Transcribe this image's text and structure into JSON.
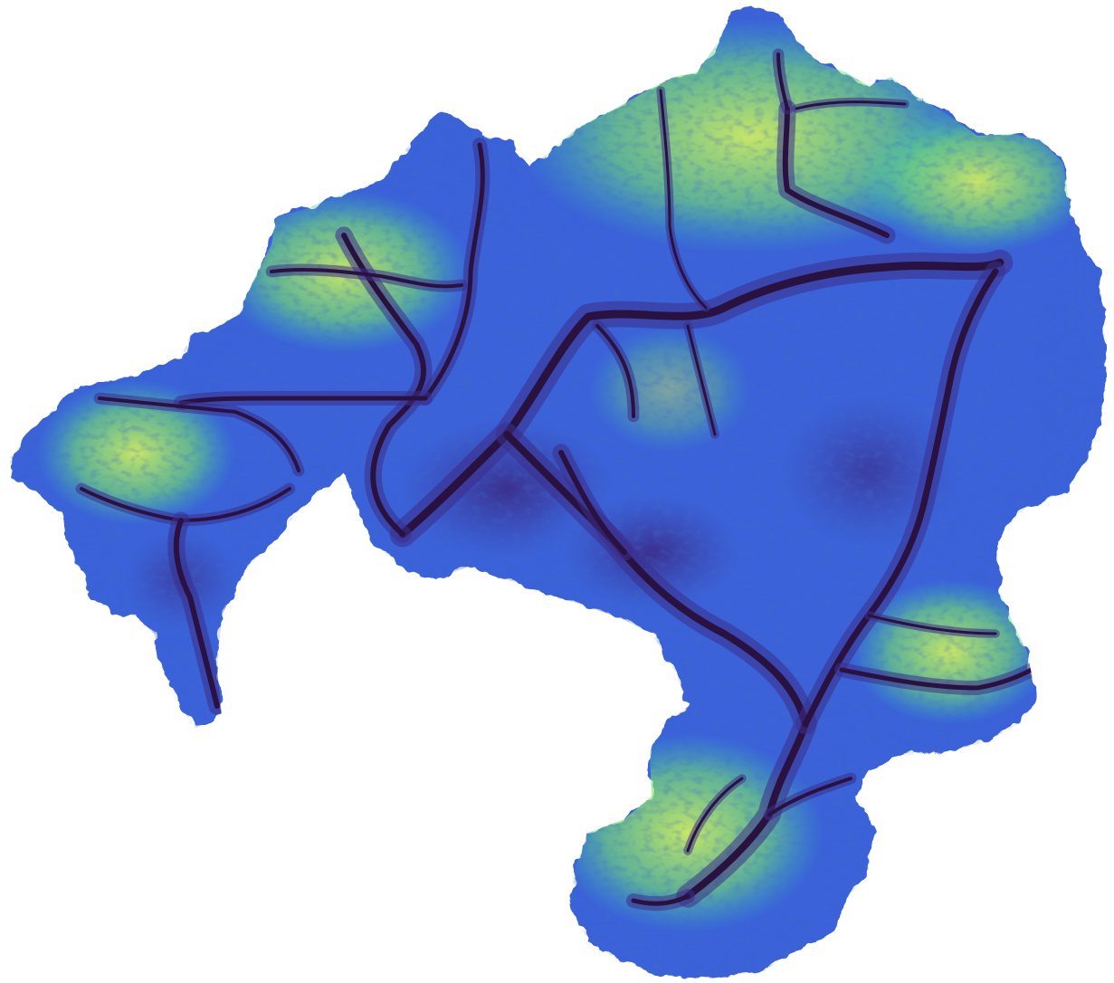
{
  "map": {
    "kind": "relief raster of a drainage basin",
    "colormap": {
      "lowest": "#2a1240",
      "low": "#3b2d8a",
      "mid_low": "#3b62d9",
      "mid": "#2aa6d8",
      "mid_high": "#2fd0b0",
      "high": "#7ae86a",
      "highest": "#d8f55a"
    },
    "background_color": "#ffffff",
    "labels_visible": false
  }
}
